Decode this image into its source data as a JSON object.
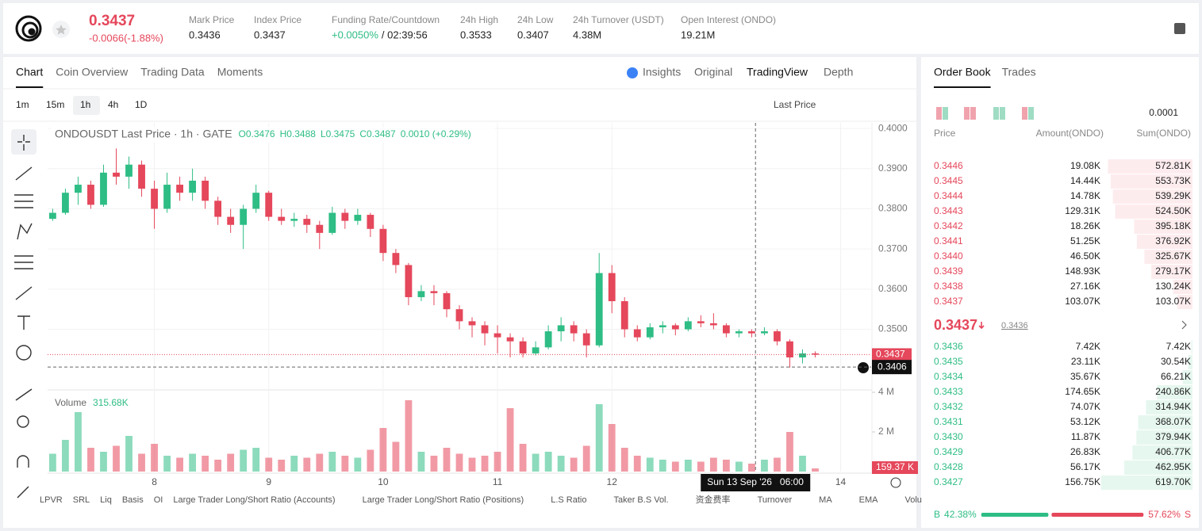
{
  "header": {
    "price": "0.3437",
    "change": "-0.0066(-1.88%)",
    "stats": [
      {
        "label": "Mark Price",
        "value": "0.3436"
      },
      {
        "label": "Index Price",
        "value": "0.3437"
      },
      {
        "label": "Funding Rate/Countdown",
        "value": "+0.0050%",
        "countdown": "/ 02:39:56"
      },
      {
        "label": "24h High",
        "value": "0.3533"
      },
      {
        "label": "24h Low",
        "value": "0.3407"
      },
      {
        "label": "24h Turnover (USDT)",
        "value": "4.38M"
      },
      {
        "label": "Open Interest (ONDO)",
        "value": "19.21M"
      }
    ]
  },
  "tabs": [
    "Chart",
    "Coin Overview",
    "Trading Data",
    "Moments"
  ],
  "view_tabs": [
    "Insights",
    "Original",
    "TradingView",
    "Depth"
  ],
  "intervals": [
    "1m",
    "15m",
    "1h",
    "4h",
    "1D"
  ],
  "price_type": "Last Price",
  "chart_data": {
    "type": "candlestick",
    "title": "ONDOUSDT Last Price · 1h · GATE",
    "ohlc_legend": [
      "O0.3476",
      "H0.3488",
      "L0.3475",
      "C0.3487",
      "0.0010 (+0.29%)"
    ],
    "up_color": "#2ebd85",
    "down_color": "#e5475b",
    "candles": [
      [
        0.3775,
        0.38,
        0.377,
        0.379
      ],
      [
        0.379,
        0.385,
        0.3785,
        0.384
      ],
      [
        0.384,
        0.388,
        0.381,
        0.386
      ],
      [
        0.386,
        0.387,
        0.38,
        0.381
      ],
      [
        0.381,
        0.391,
        0.3805,
        0.389
      ],
      [
        0.389,
        0.395,
        0.386,
        0.388
      ],
      [
        0.388,
        0.393,
        0.385,
        0.391
      ],
      [
        0.391,
        0.392,
        0.383,
        0.385
      ],
      [
        0.385,
        0.387,
        0.375,
        0.38
      ],
      [
        0.38,
        0.389,
        0.379,
        0.386
      ],
      [
        0.386,
        0.388,
        0.382,
        0.384
      ],
      [
        0.384,
        0.39,
        0.382,
        0.387
      ],
      [
        0.387,
        0.388,
        0.38,
        0.382
      ],
      [
        0.382,
        0.383,
        0.376,
        0.378
      ],
      [
        0.378,
        0.38,
        0.374,
        0.376
      ],
      [
        0.376,
        0.381,
        0.37,
        0.38
      ],
      [
        0.38,
        0.386,
        0.379,
        0.384
      ],
      [
        0.384,
        0.3845,
        0.377,
        0.378
      ],
      [
        0.378,
        0.38,
        0.376,
        0.377
      ],
      [
        0.377,
        0.379,
        0.3755,
        0.3775
      ],
      [
        0.3775,
        0.3785,
        0.374,
        0.376
      ],
      [
        0.376,
        0.377,
        0.37,
        0.374
      ],
      [
        0.374,
        0.3805,
        0.3735,
        0.379
      ],
      [
        0.379,
        0.38,
        0.375,
        0.377
      ],
      [
        0.377,
        0.38,
        0.376,
        0.3785
      ],
      [
        0.3785,
        0.379,
        0.373,
        0.375
      ],
      [
        0.375,
        0.376,
        0.367,
        0.369
      ],
      [
        0.369,
        0.37,
        0.364,
        0.366
      ],
      [
        0.366,
        0.3665,
        0.356,
        0.358
      ],
      [
        0.358,
        0.361,
        0.357,
        0.3595
      ],
      [
        0.3595,
        0.361,
        0.356,
        0.359
      ],
      [
        0.359,
        0.3595,
        0.353,
        0.355
      ],
      [
        0.355,
        0.356,
        0.35,
        0.352
      ],
      [
        0.352,
        0.353,
        0.348,
        0.351
      ],
      [
        0.351,
        0.352,
        0.346,
        0.349
      ],
      [
        0.349,
        0.351,
        0.344,
        0.348
      ],
      [
        0.348,
        0.349,
        0.343,
        0.347
      ],
      [
        0.347,
        0.348,
        0.343,
        0.344
      ],
      [
        0.344,
        0.347,
        0.3435,
        0.3455
      ],
      [
        0.3455,
        0.351,
        0.345,
        0.3495
      ],
      [
        0.3495,
        0.353,
        0.347,
        0.351
      ],
      [
        0.351,
        0.352,
        0.347,
        0.349
      ],
      [
        0.349,
        0.35,
        0.343,
        0.346
      ],
      [
        0.346,
        0.369,
        0.3455,
        0.364
      ],
      [
        0.364,
        0.366,
        0.354,
        0.357
      ],
      [
        0.357,
        0.358,
        0.348,
        0.35
      ],
      [
        0.35,
        0.351,
        0.347,
        0.348
      ],
      [
        0.348,
        0.3515,
        0.3475,
        0.3505
      ],
      [
        0.3505,
        0.352,
        0.349,
        0.351
      ],
      [
        0.351,
        0.3515,
        0.3485,
        0.35
      ],
      [
        0.35,
        0.353,
        0.3495,
        0.352
      ],
      [
        0.352,
        0.3535,
        0.3505,
        0.3515
      ],
      [
        0.3515,
        0.354,
        0.35,
        0.351
      ],
      [
        0.351,
        0.3515,
        0.348,
        0.349
      ],
      [
        0.349,
        0.35,
        0.348,
        0.3495
      ],
      [
        0.3495,
        0.35,
        0.348,
        0.349
      ],
      [
        0.349,
        0.3505,
        0.3485,
        0.3495
      ],
      [
        0.3495,
        0.35,
        0.346,
        0.347
      ],
      [
        0.347,
        0.3475,
        0.3405,
        0.343
      ],
      [
        0.343,
        0.345,
        0.3415,
        0.344
      ],
      [
        0.344,
        0.3445,
        0.343,
        0.3437
      ]
    ],
    "ylim": [
      0.3353,
      0.4014
    ],
    "yticks": [
      {
        "value": 0.4,
        "label": "0.4000"
      },
      {
        "value": 0.39,
        "label": "0.3900"
      },
      {
        "value": 0.38,
        "label": "0.3800"
      },
      {
        "value": 0.37,
        "label": "0.3700"
      },
      {
        "value": 0.36,
        "label": "0.3600"
      },
      {
        "value": 0.35,
        "label": "0.3500"
      }
    ],
    "last_price": {
      "value": 0.3437,
      "label": "0.3437"
    },
    "cursor_price": {
      "value": 0.3406,
      "label": "0.3406"
    },
    "xlim": [
      -0.4,
      64.4
    ],
    "xticks": [
      {
        "value": 8,
        "label": "8"
      },
      {
        "value": 17,
        "label": "9"
      },
      {
        "value": 26,
        "label": "10"
      },
      {
        "value": 35,
        "label": "11"
      },
      {
        "value": 44,
        "label": "12"
      },
      {
        "value": 62,
        "label": "14"
      }
    ],
    "crosshair": {
      "value": 55.3,
      "label": "Sun 13 Sep '26",
      "time": "06:00"
    },
    "volume": {
      "title": "Volume",
      "label": "315.68K",
      "ylim": [
        0,
        4.2
      ],
      "yticks": [
        {
          "value": 4,
          "label": "4 M"
        },
        {
          "value": 2,
          "label": "2 M"
        }
      ],
      "values": [
        0.9,
        1.6,
        3.0,
        1.2,
        1.0,
        1.3,
        1.8,
        0.9,
        1.4,
        0.8,
        0.7,
        0.9,
        0.8,
        0.6,
        0.9,
        1.1,
        1.2,
        0.7,
        0.6,
        0.8,
        0.7,
        0.9,
        1.0,
        0.8,
        0.7,
        1.1,
        2.2,
        1.5,
        3.6,
        1.0,
        0.8,
        1.2,
        0.9,
        0.7,
        0.8,
        1.0,
        3.2,
        1.4,
        0.9,
        1.0,
        0.8,
        0.7,
        1.3,
        3.4,
        2.4,
        1.2,
        0.8,
        0.7,
        0.6,
        0.5,
        0.6,
        0.5,
        0.7,
        0.6,
        0.5,
        0.4,
        0.6,
        0.7,
        2.0,
        0.8,
        0.15937
      ],
      "current": {
        "value": 0.15937,
        "label": "159.37 K"
      }
    }
  },
  "indicators": [
    "LPVR",
    "SRL",
    "Liq",
    "Basis",
    "OI",
    "Large Trader Long/Short Ratio (Accounts)",
    "Large Trader Long/Short Ratio (Positions)",
    "L.S Ratio",
    "Taker B.S Vol.",
    "资金费率",
    "Turnover",
    "MA",
    "EMA",
    "Volu"
  ],
  "order_book": {
    "tabs": [
      "Order Book",
      "Trades"
    ],
    "precision": "0.0001",
    "columns": [
      "Price",
      "Amount(ONDO)",
      "Sum(ONDO)"
    ],
    "asks": [
      [
        "0.3446",
        "19.08K",
        "572.81K"
      ],
      [
        "0.3445",
        "14.44K",
        "553.73K"
      ],
      [
        "0.3444",
        "14.78K",
        "539.29K"
      ],
      [
        "0.3443",
        "129.31K",
        "524.50K"
      ],
      [
        "0.3442",
        "18.26K",
        "395.18K"
      ],
      [
        "0.3441",
        "51.25K",
        "376.92K"
      ],
      [
        "0.3440",
        "46.50K",
        "325.67K"
      ],
      [
        "0.3439",
        "148.93K",
        "279.17K"
      ],
      [
        "0.3438",
        "27.16K",
        "130.24K"
      ],
      [
        "0.3437",
        "103.07K",
        "103.07K"
      ]
    ],
    "mid": {
      "price": "0.3437",
      "mark": "0.3436"
    },
    "bids": [
      [
        "0.3436",
        "7.42K",
        "7.42K"
      ],
      [
        "0.3435",
        "23.11K",
        "30.54K"
      ],
      [
        "0.3434",
        "35.67K",
        "66.21K"
      ],
      [
        "0.3433",
        "174.65K",
        "240.86K"
      ],
      [
        "0.3432",
        "74.07K",
        "314.94K"
      ],
      [
        "0.3431",
        "53.12K",
        "368.07K"
      ],
      [
        "0.3430",
        "11.87K",
        "379.94K"
      ],
      [
        "0.3429",
        "26.83K",
        "406.77K"
      ],
      [
        "0.3428",
        "56.17K",
        "462.95K"
      ],
      [
        "0.3427",
        "156.75K",
        "619.70K"
      ]
    ],
    "buy_label": "B",
    "buy": "42.38%",
    "sell": "57.62%",
    "sell_label": "S"
  }
}
